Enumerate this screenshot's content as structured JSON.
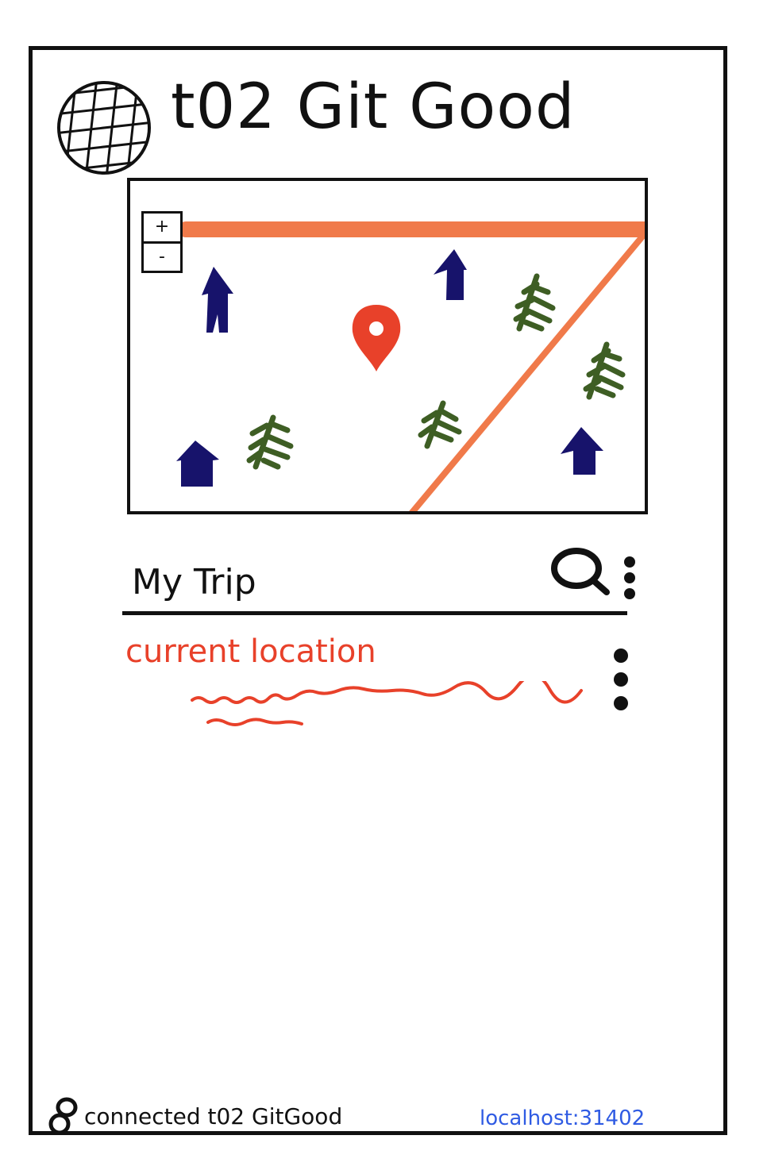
{
  "header": {
    "title": "t02 Git Good",
    "logo_icon": "globe-icon"
  },
  "map": {
    "zoom_in_label": "+",
    "zoom_out_label": "-",
    "route_color": "#f07a4a",
    "marker_color": "#e8412a",
    "marker_icon": "map-pin-icon",
    "house_color": "#17136b",
    "tree_color": "#3e5e24"
  },
  "trip": {
    "title": "My Trip",
    "search_icon": "search-icon",
    "menu_icon": "vertical-dots-icon",
    "places": [
      {
        "name": "current location",
        "color": "#e8412a",
        "menu_icon": "vertical-dots-icon"
      }
    ]
  },
  "footer": {
    "link_icon": "link-icon",
    "connection_status": "connected t02 GitGood",
    "server_address": "localhost:31402",
    "server_color": "#2f5be3"
  }
}
